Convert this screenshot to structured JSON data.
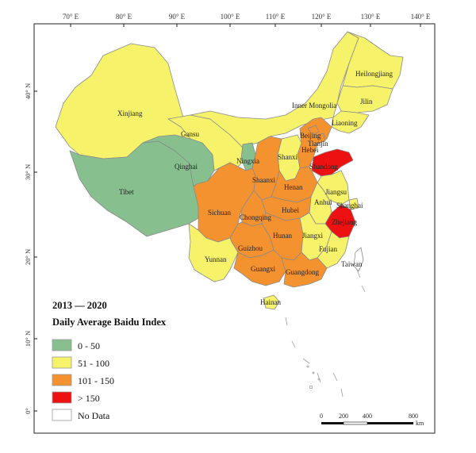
{
  "map": {
    "legend": {
      "period": "2013 — 2020",
      "title": "Daily Average Baidu Index",
      "classes": [
        {
          "label": "0 - 50",
          "color": "#87bf8f"
        },
        {
          "label": "51 - 100",
          "color": "#f6f36b"
        },
        {
          "label": "101 - 150",
          "color": "#f59230"
        },
        {
          "label": "> 150",
          "color": "#ee1111"
        },
        {
          "label": "No Data",
          "color": "#ffffff"
        }
      ]
    },
    "longitude_ticks": [
      "70° E",
      "80° E",
      "90° E",
      "100° E",
      "110° E",
      "120° E",
      "130° E",
      "140° E"
    ],
    "latitude_ticks": [
      "40° N",
      "30° N",
      "20° N",
      "10° N",
      "0°"
    ],
    "scale_bar": {
      "ticks": [
        "0",
        "200",
        "400",
        "800"
      ],
      "unit": "km"
    },
    "provinces": {
      "Xinjiang": "Xinjiang",
      "Tibet": "Tibet",
      "Qinghai": "Qinghai",
      "Gansu": "Gansu",
      "Inner Mongolia": "Inner Mongolia",
      "Heilongjiang": "Heilongjiang",
      "Jilin": "Jilin",
      "Liaoning": "Liaoning",
      "Beijing": "Beijing",
      "Tianjin": "Tianjin",
      "Hebei": "Hebei",
      "Shanxi": "Shanxi",
      "Shandong": "Shandong",
      "Ningxia": "Ningxia",
      "Shaanxi": "Shaanxi",
      "Henan": "Henan",
      "Jiangsu": "Jiangsu",
      "Anhui": "Anhui",
      "Shanghai": "Shanghai",
      "Hubei": "Hubei",
      "Sichuan": "Sichuan",
      "Chongqing": "Chongqing",
      "Zhejiang": "Zhejiang",
      "Hunan": "Hunan",
      "Jiangxi": "Jiangxi",
      "Fujian": "Fujian",
      "Taiwan": "Taiwan",
      "Yunnan": "Yunnan",
      "Guizhou": "Guizhou",
      "Guangxi": "Guangxi",
      "Guangdong": "Guangdong",
      "Hainan": "Hainan"
    }
  }
}
